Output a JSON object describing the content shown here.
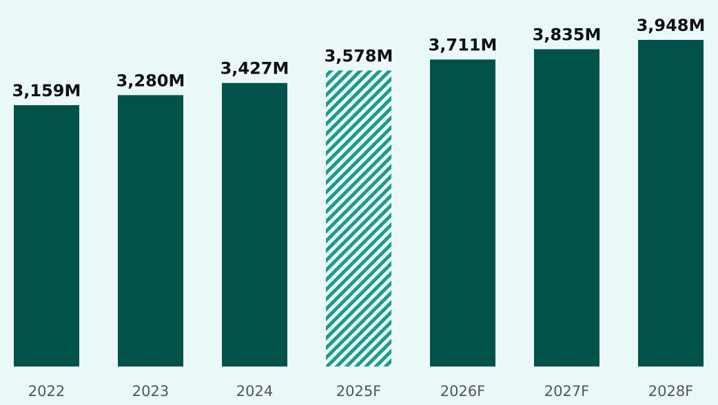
{
  "chart_data": {
    "type": "bar",
    "categories": [
      "2022",
      "2023",
      "2024",
      "2025F",
      "2026F",
      "2027F",
      "2028F"
    ],
    "values": [
      3159,
      3280,
      3427,
      3578,
      3711,
      3835,
      3948
    ],
    "value_labels": [
      "3,159M",
      "3,280M",
      "3,427M",
      "3,578M",
      "3,711M",
      "3,835M",
      "3,948M"
    ],
    "bar_styles": [
      "solid",
      "solid",
      "solid",
      "hatched",
      "solid",
      "solid",
      "solid"
    ],
    "title": "",
    "xlabel": "",
    "ylabel": "",
    "ylim": [
      0,
      3948
    ],
    "grid": false,
    "legend": "none"
  },
  "colors": {
    "background": "#EAF9F8",
    "bar": "#00524A",
    "hatch": "#1E9A8B",
    "value_label": "#111111",
    "tick_label": "#555555"
  }
}
